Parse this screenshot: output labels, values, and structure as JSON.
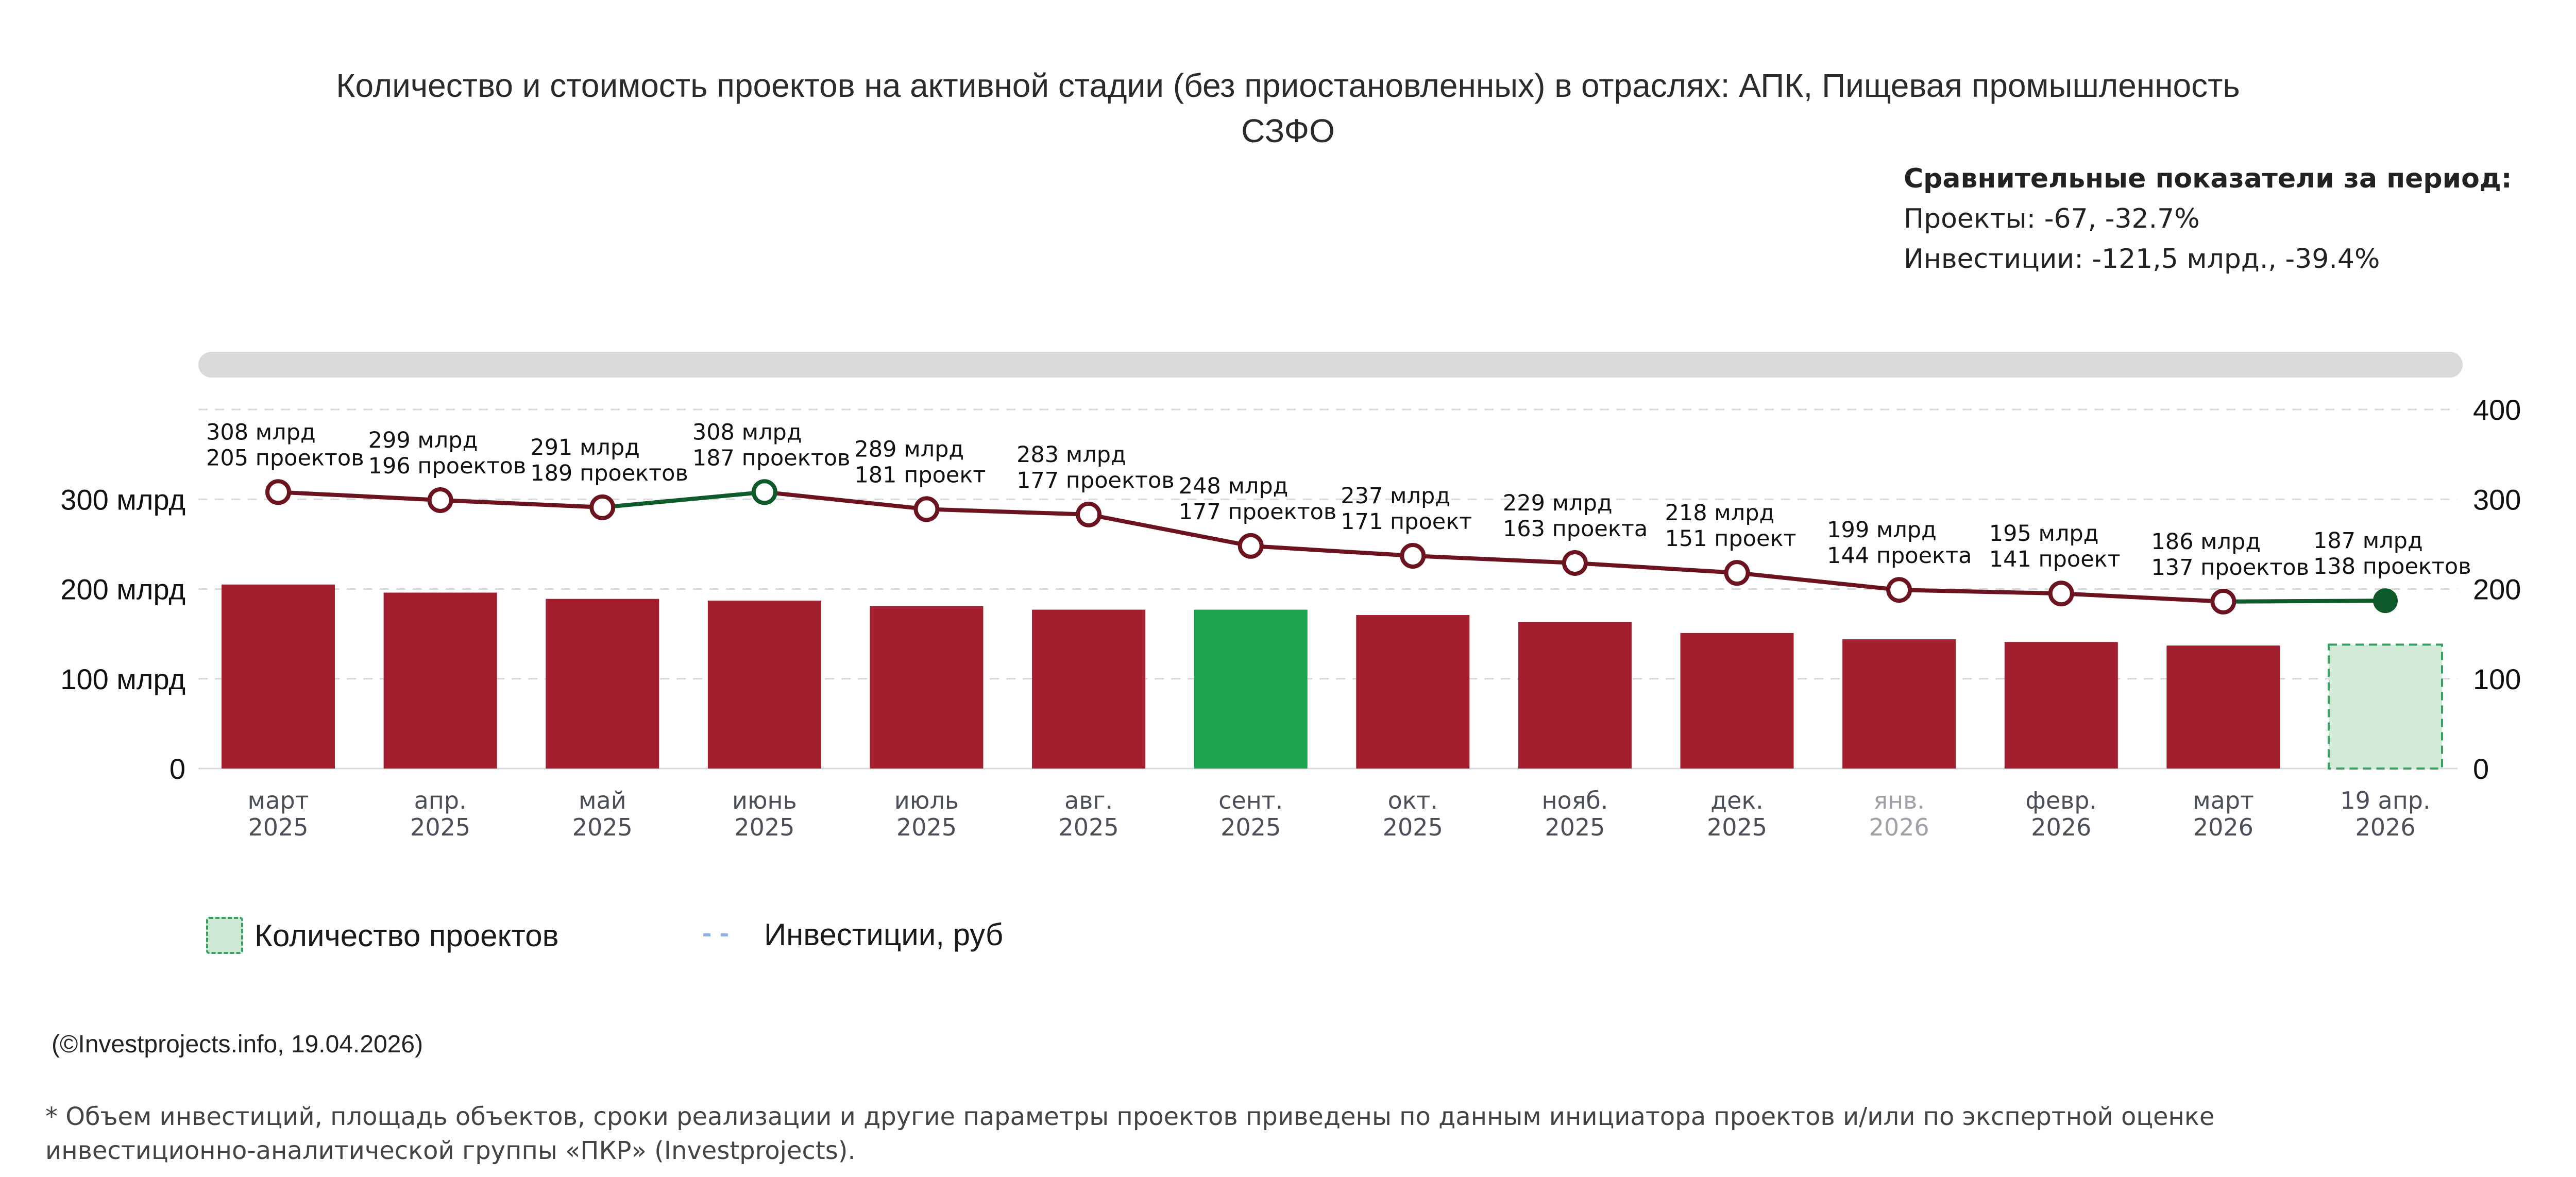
{
  "title_line1": "Количество и стоимость проектов на активной стадии (без приостановленных) в отраслях: АПК, Пищевая промышленность",
  "title_line2": "СЗФО",
  "compare": {
    "heading": "Сравнительные показатели за период:",
    "projects": "Проекты: -67, -32.7%",
    "investments": "Инвестиции: -121,5 млрд., -39.4%"
  },
  "legend": {
    "bars": "Количество проектов",
    "line": "Инвестиции, руб"
  },
  "credit": "(©Investprojects.info, 19.04.2026)",
  "footnote_line1": "* Объем инвестиций, площадь объектов, сроки реализации и другие параметры проектов приведены по данным инициатора проектов и/или по экспертной оценке",
  "footnote_line2": "инвестиционно-аналитической группы «ПКР» (Investprojects).",
  "colors": {
    "bar": "#a31e2e",
    "bar_highlight": "#1ba34e",
    "bar_current": "#d2ecd9",
    "line": "#6b1420",
    "line_up": "#0f5a2a",
    "grid": "#d9d9d9",
    "scrollbar": "#d9d9d9"
  },
  "chart_data": {
    "type": "bar+line",
    "categories": [
      [
        "март",
        "2025"
      ],
      [
        "апр.",
        "2025"
      ],
      [
        "май",
        "2025"
      ],
      [
        "июнь",
        "2025"
      ],
      [
        "июль",
        "2025"
      ],
      [
        "авг.",
        "2025"
      ],
      [
        "сент.",
        "2025"
      ],
      [
        "окт.",
        "2025"
      ],
      [
        "нояб.",
        "2025"
      ],
      [
        "дек.",
        "2025"
      ],
      [
        "янв.",
        "2026"
      ],
      [
        "февр.",
        "2026"
      ],
      [
        "март",
        "2026"
      ],
      [
        "19 апр.",
        "2026"
      ]
    ],
    "series": [
      {
        "name": "Количество проектов",
        "type": "bar",
        "axis": "right",
        "values": [
          205,
          196,
          189,
          187,
          181,
          177,
          177,
          171,
          163,
          151,
          144,
          141,
          137,
          138
        ]
      },
      {
        "name": "Инвестиции, руб",
        "type": "line",
        "axis": "left",
        "unit": "млрд",
        "values": [
          308,
          299,
          291,
          308,
          289,
          283,
          248,
          237,
          229,
          218,
          199,
          195,
          186,
          187
        ]
      }
    ],
    "point_labels": [
      [
        "308 млрд",
        "205 проектов"
      ],
      [
        "299 млрд",
        "196 проектов"
      ],
      [
        "291 млрд",
        "189 проектов"
      ],
      [
        "308 млрд",
        "187 проектов"
      ],
      [
        "289 млрд",
        "181 проект"
      ],
      [
        "283 млрд",
        "177 проектов"
      ],
      [
        "248 млрд",
        "177 проектов"
      ],
      [
        "237 млрд",
        "171 проект"
      ],
      [
        "229 млрд",
        "163 проекта"
      ],
      [
        "218 млрд",
        "151 проект"
      ],
      [
        "199 млрд",
        "144 проекта"
      ],
      [
        "195 млрд",
        "141 проект"
      ],
      [
        "186 млрд",
        "137 проектов"
      ],
      [
        "187 млрд",
        "138 проектов"
      ]
    ],
    "highlight_index": 6,
    "current_index": 13,
    "muted_label_index": 10,
    "left_axis": {
      "ticks": [
        0,
        100,
        200,
        300
      ],
      "labels": [
        "0",
        "100 млрд",
        "200 млрд",
        "300 млрд"
      ],
      "ylim": [
        0,
        400
      ]
    },
    "right_axis": {
      "ticks": [
        0,
        100,
        200,
        300,
        400
      ],
      "labels": [
        "0",
        "100",
        "200",
        "300",
        "400"
      ],
      "ylim": [
        0,
        400
      ]
    },
    "grid": true
  }
}
